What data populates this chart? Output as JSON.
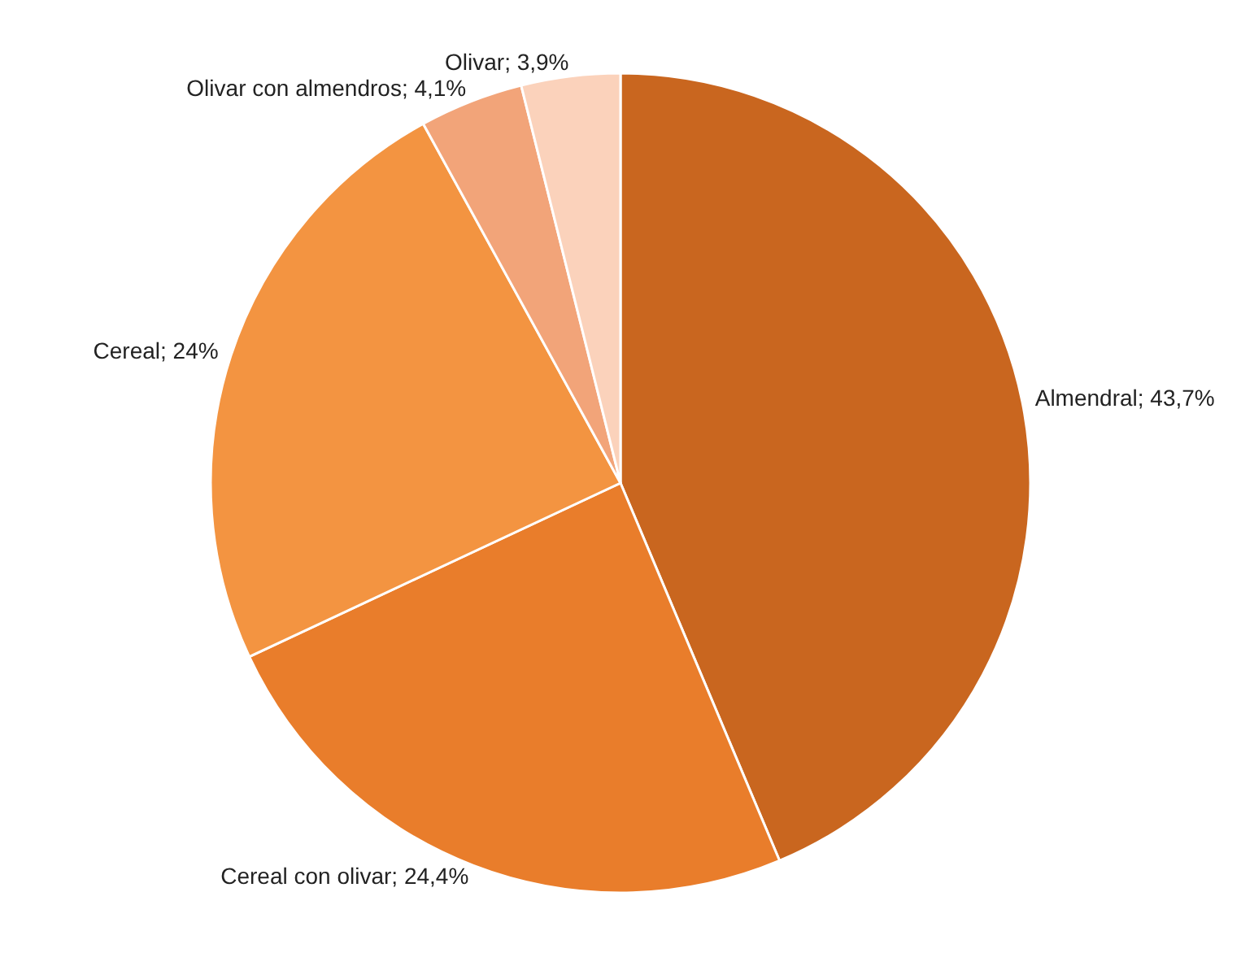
{
  "chart_data": {
    "type": "pie",
    "categories": [
      "Almendral",
      "Cereal con olivar",
      "Cereal",
      "Olivar con almendros",
      "Olivar"
    ],
    "values": [
      43.7,
      24.4,
      24,
      4.1,
      3.9
    ],
    "value_labels": [
      "43,7%",
      "24,4%",
      "24%",
      "4,1%",
      "3,9%"
    ],
    "colors": [
      "#c9661f",
      "#e97d2b",
      "#f39441",
      "#f2a479",
      "#fbd2bb"
    ]
  }
}
